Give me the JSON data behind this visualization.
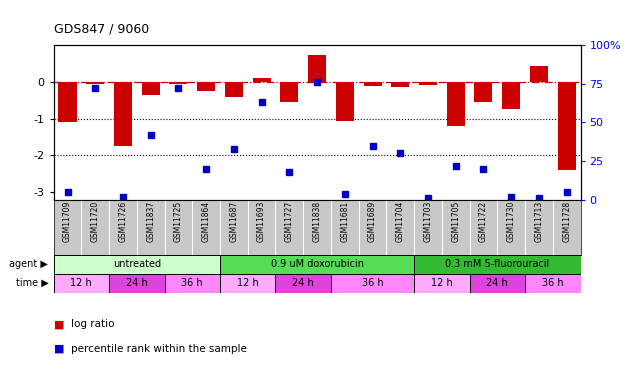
{
  "title": "GDS847 / 9060",
  "samples": [
    "GSM11709",
    "GSM11720",
    "GSM11726",
    "GSM11837",
    "GSM11725",
    "GSM11864",
    "GSM11687",
    "GSM11693",
    "GSM11727",
    "GSM11838",
    "GSM11681",
    "GSM11689",
    "GSM11704",
    "GSM11703",
    "GSM11705",
    "GSM11722",
    "GSM11730",
    "GSM11713",
    "GSM11728"
  ],
  "log_ratio": [
    -1.1,
    -0.05,
    -1.75,
    -0.35,
    -0.05,
    -0.25,
    -0.4,
    0.1,
    -0.55,
    0.72,
    -1.05,
    -0.1,
    -0.15,
    -0.08,
    -1.2,
    -0.55,
    -0.75,
    0.42,
    -2.4
  ],
  "percentile": [
    5,
    72,
    2,
    42,
    72,
    20,
    33,
    63,
    18,
    76,
    4,
    35,
    30,
    1,
    22,
    20,
    2,
    1,
    5
  ],
  "agents": [
    {
      "label": "untreated",
      "color": "#ccffcc",
      "span": [
        0,
        6
      ]
    },
    {
      "label": "0.9 uM doxorubicin",
      "color": "#55dd55",
      "span": [
        6,
        13
      ]
    },
    {
      "label": "0.3 mM 5-fluorouracil",
      "color": "#33bb33",
      "span": [
        13,
        19
      ]
    }
  ],
  "time_spans": [
    {
      "label": "12 h",
      "start": 0,
      "end": 2,
      "color": "#ffaaff"
    },
    {
      "label": "24 h",
      "start": 2,
      "end": 4,
      "color": "#dd44dd"
    },
    {
      "label": "36 h",
      "start": 4,
      "end": 6,
      "color": "#ff88ff"
    },
    {
      "label": "12 h",
      "start": 6,
      "end": 8,
      "color": "#ffaaff"
    },
    {
      "label": "24 h",
      "start": 8,
      "end": 10,
      "color": "#dd44dd"
    },
    {
      "label": "36 h",
      "start": 10,
      "end": 13,
      "color": "#ff88ff"
    },
    {
      "label": "12 h",
      "start": 13,
      "end": 15,
      "color": "#ffaaff"
    },
    {
      "label": "24 h",
      "start": 15,
      "end": 17,
      "color": "#dd44dd"
    },
    {
      "label": "36 h",
      "start": 17,
      "end": 19,
      "color": "#ff88ff"
    }
  ],
  "bar_color": "#cc0000",
  "dot_color": "#0000cc",
  "ylim_left": [
    -3.2,
    1.0
  ],
  "ylim_right": [
    0,
    100
  ],
  "yticks_left": [
    -3,
    -2,
    -1,
    0
  ],
  "yticks_right": [
    0,
    25,
    50,
    75,
    100
  ],
  "dotted_lines": [
    -1,
    -2
  ],
  "background_color": "#ffffff",
  "label_bg": "#c8c8c8"
}
